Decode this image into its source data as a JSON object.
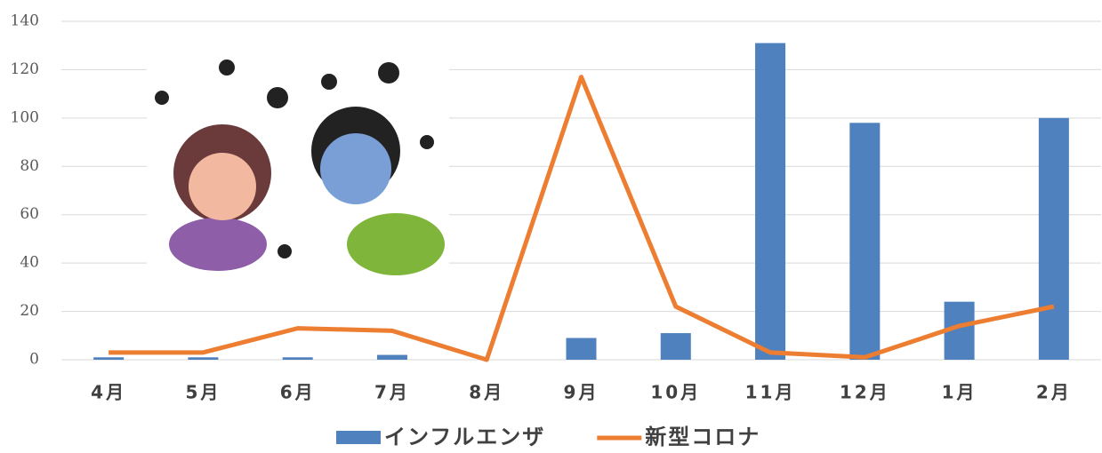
{
  "chart_data": {
    "type": "combo",
    "categories": [
      "4月",
      "5月",
      "6月",
      "7月",
      "8月",
      "9月",
      "10月",
      "11月",
      "12月",
      "1月",
      "2月"
    ],
    "series": [
      {
        "name": "インフルエンザ",
        "type": "bar",
        "color": "#4e81bd",
        "values": [
          1,
          1,
          1,
          2,
          0,
          9,
          11,
          131,
          98,
          24,
          100
        ]
      },
      {
        "name": "新型コロナ",
        "type": "line",
        "color": "#ed7d31",
        "values": [
          3,
          3,
          13,
          12,
          0,
          117,
          22,
          3,
          1,
          14,
          22
        ]
      }
    ],
    "ylim": [
      0,
      140
    ],
    "yticks": [
      0,
      20,
      40,
      60,
      80,
      100,
      120,
      140
    ],
    "grid": true,
    "legend": "bottom"
  }
}
